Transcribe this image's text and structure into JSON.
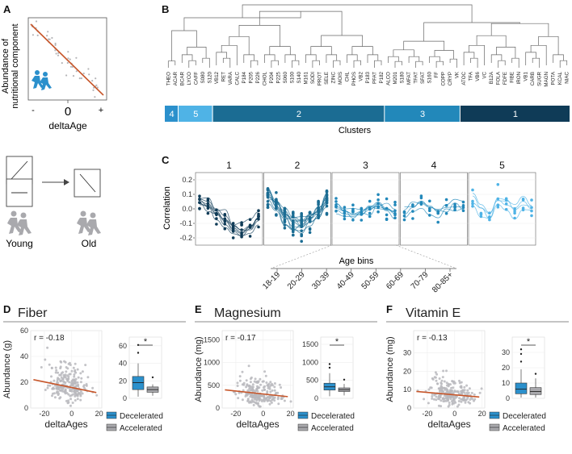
{
  "panels": {
    "a": {
      "letter": "A",
      "ylabel_line1": "Abundance of",
      "ylabel_line2": "nutritional component",
      "xlabel": "deltaAge",
      "tick_minus": "-",
      "tick_zero": "0",
      "tick_plus": "+",
      "young_label": "Young",
      "old_label": "Old"
    },
    "b": {
      "letter": "B",
      "clusters_label": "Clusters"
    },
    "c": {
      "letter": "C",
      "ylabel": "Correlation",
      "age_bins_label": "Age bins"
    },
    "d": {
      "letter": "D",
      "title": "Fiber",
      "r_label": "r = -0.18",
      "ylabel": "Abundance (g)",
      "xlabel": "deltaAges",
      "sig": "*"
    },
    "e": {
      "letter": "E",
      "title": "Magnesium",
      "r_label": "r = -0.17",
      "ylabel": "Abundance (mg)",
      "xlabel": "deltaAges",
      "sig": "*"
    },
    "f": {
      "letter": "F",
      "title": "Vitamin E",
      "r_label": "r = -0.13",
      "ylabel": "Abundance (mg)",
      "xlabel": "deltaAges",
      "sig": "*"
    }
  },
  "legend": {
    "decelerated": "Decelerated",
    "accelerated": "Accelerated"
  },
  "colors": {
    "c1": "#0f3b57",
    "c2": "#1b6c93",
    "c3": "#2288ba",
    "c4": "#2b90cc",
    "c5": "#4fb3e6",
    "trend": "#c7562a",
    "scatter": "#b9b9bd",
    "accel_box": "#a9a9ad"
  },
  "chart_data": [
    {
      "id": "dendrogram-clusters",
      "type": "table",
      "leaves": [
        "THEO",
        "ACAR",
        "BCAR",
        "LYCO",
        "CAFF",
        "S080",
        "S120",
        "VB12",
        "RET",
        "VARA",
        "CALC",
        "P184",
        "P205",
        "P226",
        "CHOL",
        "P204",
        "P225",
        "S060",
        "S100",
        "S140",
        "M161",
        "SODI",
        "PROT",
        "SELE",
        "ZINC",
        "MOIS",
        "CHL",
        "PHOS",
        "VB2",
        "P183",
        "PFAT",
        "P182",
        "ALCO",
        "M201",
        "S180",
        "MFAT",
        "TFAT",
        "SFAT",
        "S160",
        "FF",
        "COPP",
        "CRYP",
        "VK",
        "ATOC",
        "TFA",
        "VB6",
        "VC",
        "B12A",
        "FOLA",
        "FDFE",
        "FIBE",
        "IRON",
        "VB1",
        "CARB",
        "SUGR",
        "MAGN",
        "POTA",
        "KCAL",
        "NIAC"
      ],
      "clusters": [
        {
          "label": "4",
          "members": 2
        },
        {
          "label": "5",
          "members": 5
        },
        {
          "label": "2",
          "members": 25
        },
        {
          "label": "3",
          "members": 11
        },
        {
          "label": "1",
          "members": 16
        }
      ],
      "xlabel": "Clusters"
    },
    {
      "id": "correlation-by-age-bin",
      "type": "line",
      "ylabel": "Correlation",
      "xlabel": "Age bins",
      "ylim": [
        -0.25,
        0.25
      ],
      "yticks": [
        -0.2,
        -0.1,
        0.0,
        0.1,
        0.2
      ],
      "categories": [
        "18-19",
        "20-29",
        "30-39",
        "40-49",
        "50-59",
        "60-69",
        "70-79",
        "80-85+"
      ],
      "series": [
        {
          "name": "1",
          "values": [
            0.05,
            0.02,
            -0.03,
            -0.08,
            -0.13,
            -0.16,
            -0.13,
            -0.06
          ]
        },
        {
          "name": "2",
          "values": [
            0.1,
            0.04,
            -0.05,
            -0.1,
            -0.11,
            -0.06,
            -0.02,
            0.06
          ]
        },
        {
          "name": "3",
          "values": [
            0.01,
            -0.02,
            -0.03,
            -0.02,
            0.0,
            0.02,
            0.0,
            -0.03
          ]
        },
        {
          "name": "4",
          "values": [
            -0.02,
            0.02,
            0.04,
            0.01,
            -0.02,
            0.01,
            0.04,
            0.01
          ]
        },
        {
          "name": "5",
          "values": [
            0.07,
            0.0,
            -0.04,
            0.05,
            0.03,
            -0.02,
            0.05,
            0.0
          ]
        }
      ]
    },
    {
      "id": "fiber",
      "type": "scatter",
      "title": "Fiber",
      "xlabel": "deltaAges",
      "ylabel": "Abundance (g)",
      "xlim": [
        -30,
        22
      ],
      "ylim": [
        0,
        60
      ],
      "xticks": [
        -20,
        0,
        20
      ],
      "yticks": [
        0,
        20,
        40,
        60
      ],
      "r": -0.18,
      "trend": {
        "x": [
          -28,
          18
        ],
        "y": [
          22,
          12
        ]
      },
      "box": {
        "categories": [
          "Decelerated",
          "Accelerated"
        ],
        "ylim": [
          0,
          70
        ],
        "q1": [
          10,
          7
        ],
        "median": [
          18,
          10
        ],
        "q3": [
          25,
          13
        ],
        "whisker_low": [
          2,
          3
        ],
        "whisker_high": [
          40,
          16
        ],
        "outliers": [
          [
            52,
            61
          ],
          [
            24
          ]
        ]
      }
    },
    {
      "id": "magnesium",
      "type": "scatter",
      "title": "Magnesium",
      "xlabel": "deltaAges",
      "ylabel": "Abundance (mg)",
      "xlim": [
        -30,
        22
      ],
      "ylim": [
        0,
        1700
      ],
      "xticks": [
        -20,
        0,
        20
      ],
      "yticks": [
        0,
        500,
        1000,
        1500
      ],
      "r": -0.17,
      "trend": {
        "x": [
          -28,
          18
        ],
        "y": [
          400,
          250
        ]
      },
      "box": {
        "categories": [
          "Decelerated",
          "Accelerated"
        ],
        "ylim": [
          0,
          1700
        ],
        "q1": [
          230,
          190
        ],
        "median": [
          320,
          240
        ],
        "q3": [
          420,
          290
        ],
        "whisker_low": [
          60,
          80
        ],
        "whisker_high": [
          700,
          400
        ],
        "outliers": [
          [
            850,
            950
          ],
          [
            520
          ]
        ]
      }
    },
    {
      "id": "vitamin-e",
      "type": "scatter",
      "title": "Vitamin E",
      "xlabel": "deltaAges",
      "ylabel": "Abundance (mg)",
      "xlim": [
        -30,
        22
      ],
      "ylim": [
        0,
        42
      ],
      "xticks": [
        -20,
        0,
        20
      ],
      "yticks": [
        0,
        10,
        20,
        30
      ],
      "r": -0.13,
      "trend": {
        "x": [
          -28,
          18
        ],
        "y": [
          9,
          6
        ]
      },
      "box": {
        "categories": [
          "Decelerated",
          "Accelerated"
        ],
        "ylim": [
          0,
          40
        ],
        "q1": [
          3,
          2.5
        ],
        "median": [
          6,
          4.5
        ],
        "q3": [
          10,
          7
        ],
        "whisker_low": [
          0.5,
          0.5
        ],
        "whisker_high": [
          19,
          13
        ],
        "outliers": [
          [
            24,
            29,
            32
          ],
          [
            16
          ]
        ]
      }
    }
  ]
}
